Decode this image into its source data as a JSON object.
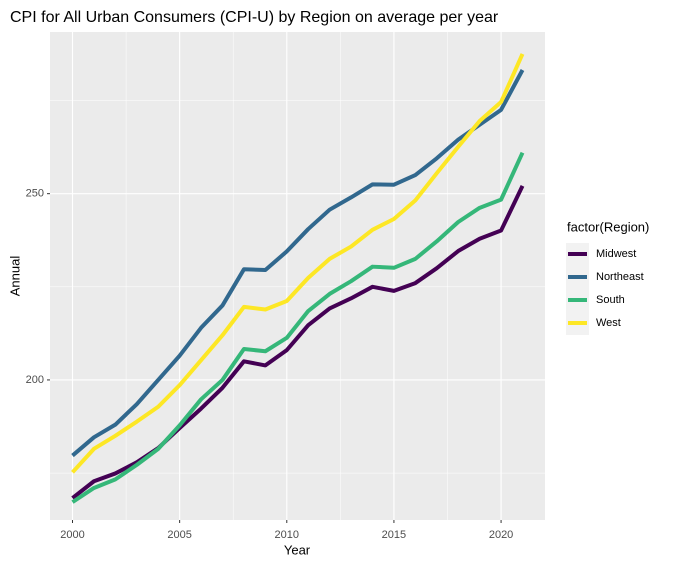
{
  "chart_data": {
    "type": "line",
    "title": "CPI for All Urban Consumers (CPI-U) by Region on average per year",
    "x_label": "Year",
    "y_label": "Annual",
    "legend_title": "factor(Region)",
    "x": [
      2000,
      2001,
      2002,
      2003,
      2004,
      2005,
      2006,
      2007,
      2008,
      2009,
      2010,
      2011,
      2012,
      2013,
      2014,
      2015,
      2016,
      2017,
      2018,
      2019,
      2020,
      2021
    ],
    "series": [
      {
        "name": "Midwest",
        "color": "#440154",
        "values": [
          168.3,
          172.8,
          174.9,
          177.9,
          181.7,
          187.1,
          192.3,
          197.9,
          205.0,
          203.9,
          208.0,
          214.7,
          219.2,
          221.9,
          225.0,
          223.9,
          226.0,
          230.0,
          234.6,
          237.9,
          240.1,
          252.1
        ]
      },
      {
        "name": "Northeast",
        "color": "#31688E",
        "values": [
          179.7,
          184.6,
          188.0,
          193.5,
          200.0,
          206.5,
          214.0,
          220.0,
          229.7,
          229.5,
          234.5,
          240.5,
          245.7,
          249.0,
          252.5,
          252.4,
          255.0,
          259.5,
          264.5,
          268.5,
          272.5,
          283.2
        ]
      },
      {
        "name": "South",
        "color": "#35B779",
        "values": [
          167.2,
          171.0,
          173.3,
          177.2,
          181.5,
          187.8,
          194.8,
          200.0,
          208.3,
          207.7,
          211.3,
          218.5,
          223.1,
          226.5,
          230.4,
          230.1,
          232.5,
          237.2,
          242.4,
          246.2,
          248.4,
          261.0
        ]
      },
      {
        "name": "West",
        "color": "#FDE725",
        "values": [
          175.2,
          181.5,
          185.0,
          188.8,
          192.8,
          198.6,
          205.3,
          212.0,
          219.6,
          218.9,
          221.2,
          227.4,
          232.5,
          235.8,
          240.3,
          243.2,
          248.2,
          255.5,
          262.6,
          269.5,
          274.6,
          287.5
        ]
      }
    ],
    "xlim": [
      1998.95,
      2022.05
    ],
    "xticks": [
      2000,
      2005,
      2010,
      2015,
      2020
    ],
    "ylim": [
      162.4,
      293.4
    ],
    "yticks": [
      200,
      250
    ],
    "grid": true
  }
}
